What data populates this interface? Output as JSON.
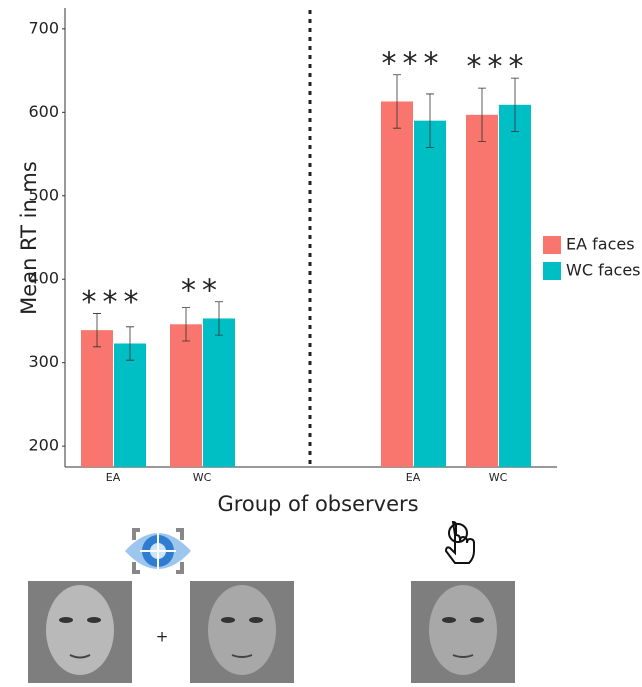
{
  "chart_data": {
    "type": "bar",
    "x_label": "Group of observers",
    "y_label": "Mean RT in ms",
    "categories": [
      "EA",
      "WC",
      "EA",
      "WC"
    ],
    "series": [
      {
        "name": "EA faces",
        "color": "#f8766d",
        "values": [
          339,
          346,
          613,
          597
        ],
        "errors": [
          20,
          20,
          32,
          32
        ]
      },
      {
        "name": "WC faces",
        "color": "#00bfc4",
        "values": [
          323,
          353,
          590,
          609
        ],
        "errors": [
          20,
          20,
          32,
          32
        ]
      }
    ],
    "annotations": [
      "***",
      "**",
      "***",
      "***"
    ],
    "stimulus_text": "+",
    "ylim": [
      175,
      725
    ],
    "yticks": [
      200,
      300,
      400,
      500,
      600,
      700
    ],
    "grid": false,
    "legend": "right"
  }
}
